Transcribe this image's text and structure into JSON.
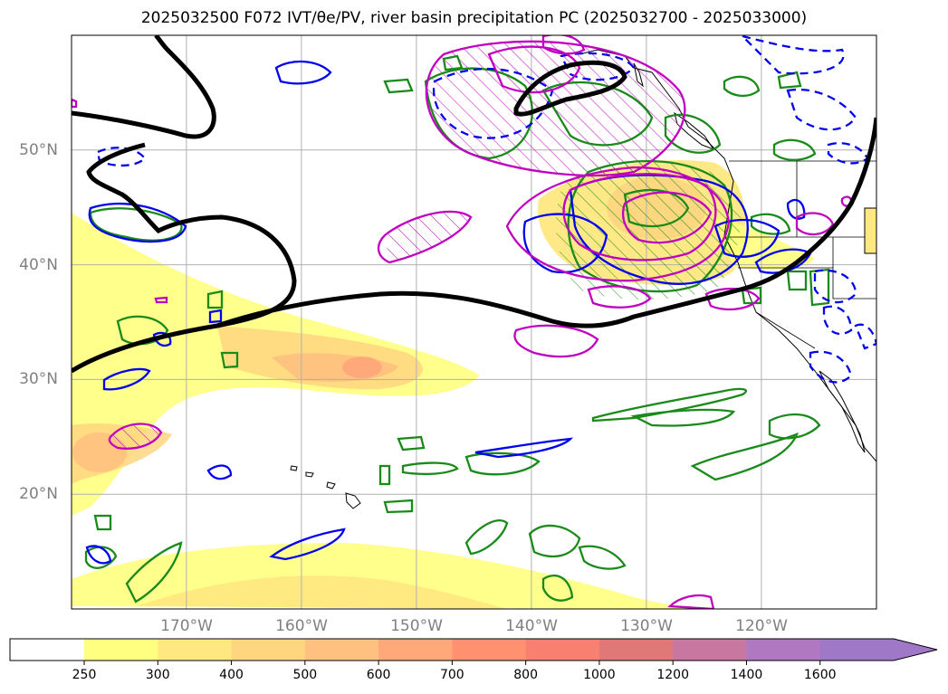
{
  "title": "2025032500 F072 IVT/θe/PV, river basin precipitation PC (2025032700 - 2025033000)",
  "map": {
    "projection": "equirectangular",
    "lon_range": [
      -180,
      -110
    ],
    "lat_range": [
      10,
      60
    ],
    "lat_labels": [
      {
        "lat": 50,
        "text": "50°N"
      },
      {
        "lat": 40,
        "text": "40°N"
      },
      {
        "lat": 30,
        "text": "30°N"
      },
      {
        "lat": 20,
        "text": "20°N"
      }
    ],
    "lon_labels": [
      {
        "lon": -170,
        "text": "170°W"
      },
      {
        "lon": -160,
        "text": "160°W"
      },
      {
        "lon": -150,
        "text": "150°W"
      },
      {
        "lon": -140,
        "text": "140°W"
      },
      {
        "lon": -130,
        "text": "130°W"
      },
      {
        "lon": -120,
        "text": "120°W"
      }
    ],
    "grid": true,
    "colors": {
      "pv_contour": "#000000",
      "theta_e_green": "#1a8a1a",
      "contour_blue": "#0000ee",
      "contour_magenta": "#c000c0",
      "coastline": "#000000"
    }
  },
  "colorbar": {
    "levels": [
      "250",
      "300",
      "400",
      "500",
      "600",
      "700",
      "800",
      "1000",
      "1200",
      "1400",
      "1600"
    ],
    "colors": [
      "#ffff80",
      "#ffe880",
      "#ffd680",
      "#ffc080",
      "#ffa87a",
      "#ff9070",
      "#f88070",
      "#e07878",
      "#c878a0",
      "#b078c0",
      "#a078c8"
    ],
    "extend": "max"
  }
}
